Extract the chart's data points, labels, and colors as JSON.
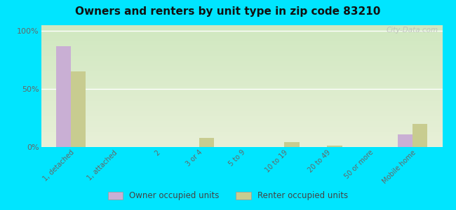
{
  "title": "Owners and renters by unit type in zip code 83210",
  "categories": [
    "1, detached",
    "1, attached",
    "2",
    "3 or 4",
    "5 to 9",
    "10 to 19",
    "20 to 49",
    "50 or more",
    "Mobile home"
  ],
  "owner_values": [
    87,
    0,
    0,
    0,
    0,
    0,
    0,
    0,
    11
  ],
  "renter_values": [
    65,
    0,
    0,
    8,
    0,
    4,
    1,
    0,
    20
  ],
  "owner_color": "#c9afd4",
  "renter_color": "#c8cc90",
  "background_color": "#00e5ff",
  "ylabel_ticks": [
    "0%",
    "50%",
    "100%"
  ],
  "ytick_vals": [
    0,
    50,
    100
  ],
  "ylim": [
    0,
    105
  ],
  "watermark": "City-Data.com",
  "legend_owner": "Owner occupied units",
  "legend_renter": "Renter occupied units",
  "bar_width": 0.35
}
